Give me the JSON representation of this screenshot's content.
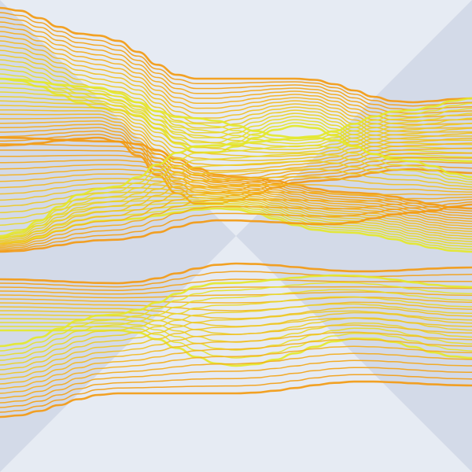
{
  "artwork": {
    "background": {
      "light": "#e6ebf3",
      "dark": "#d3dae8"
    },
    "palette": {
      "warm": "#f28e0c",
      "mid": "#f5b51c",
      "cool": "#e4e82a"
    },
    "ribbon_count": 6
  }
}
